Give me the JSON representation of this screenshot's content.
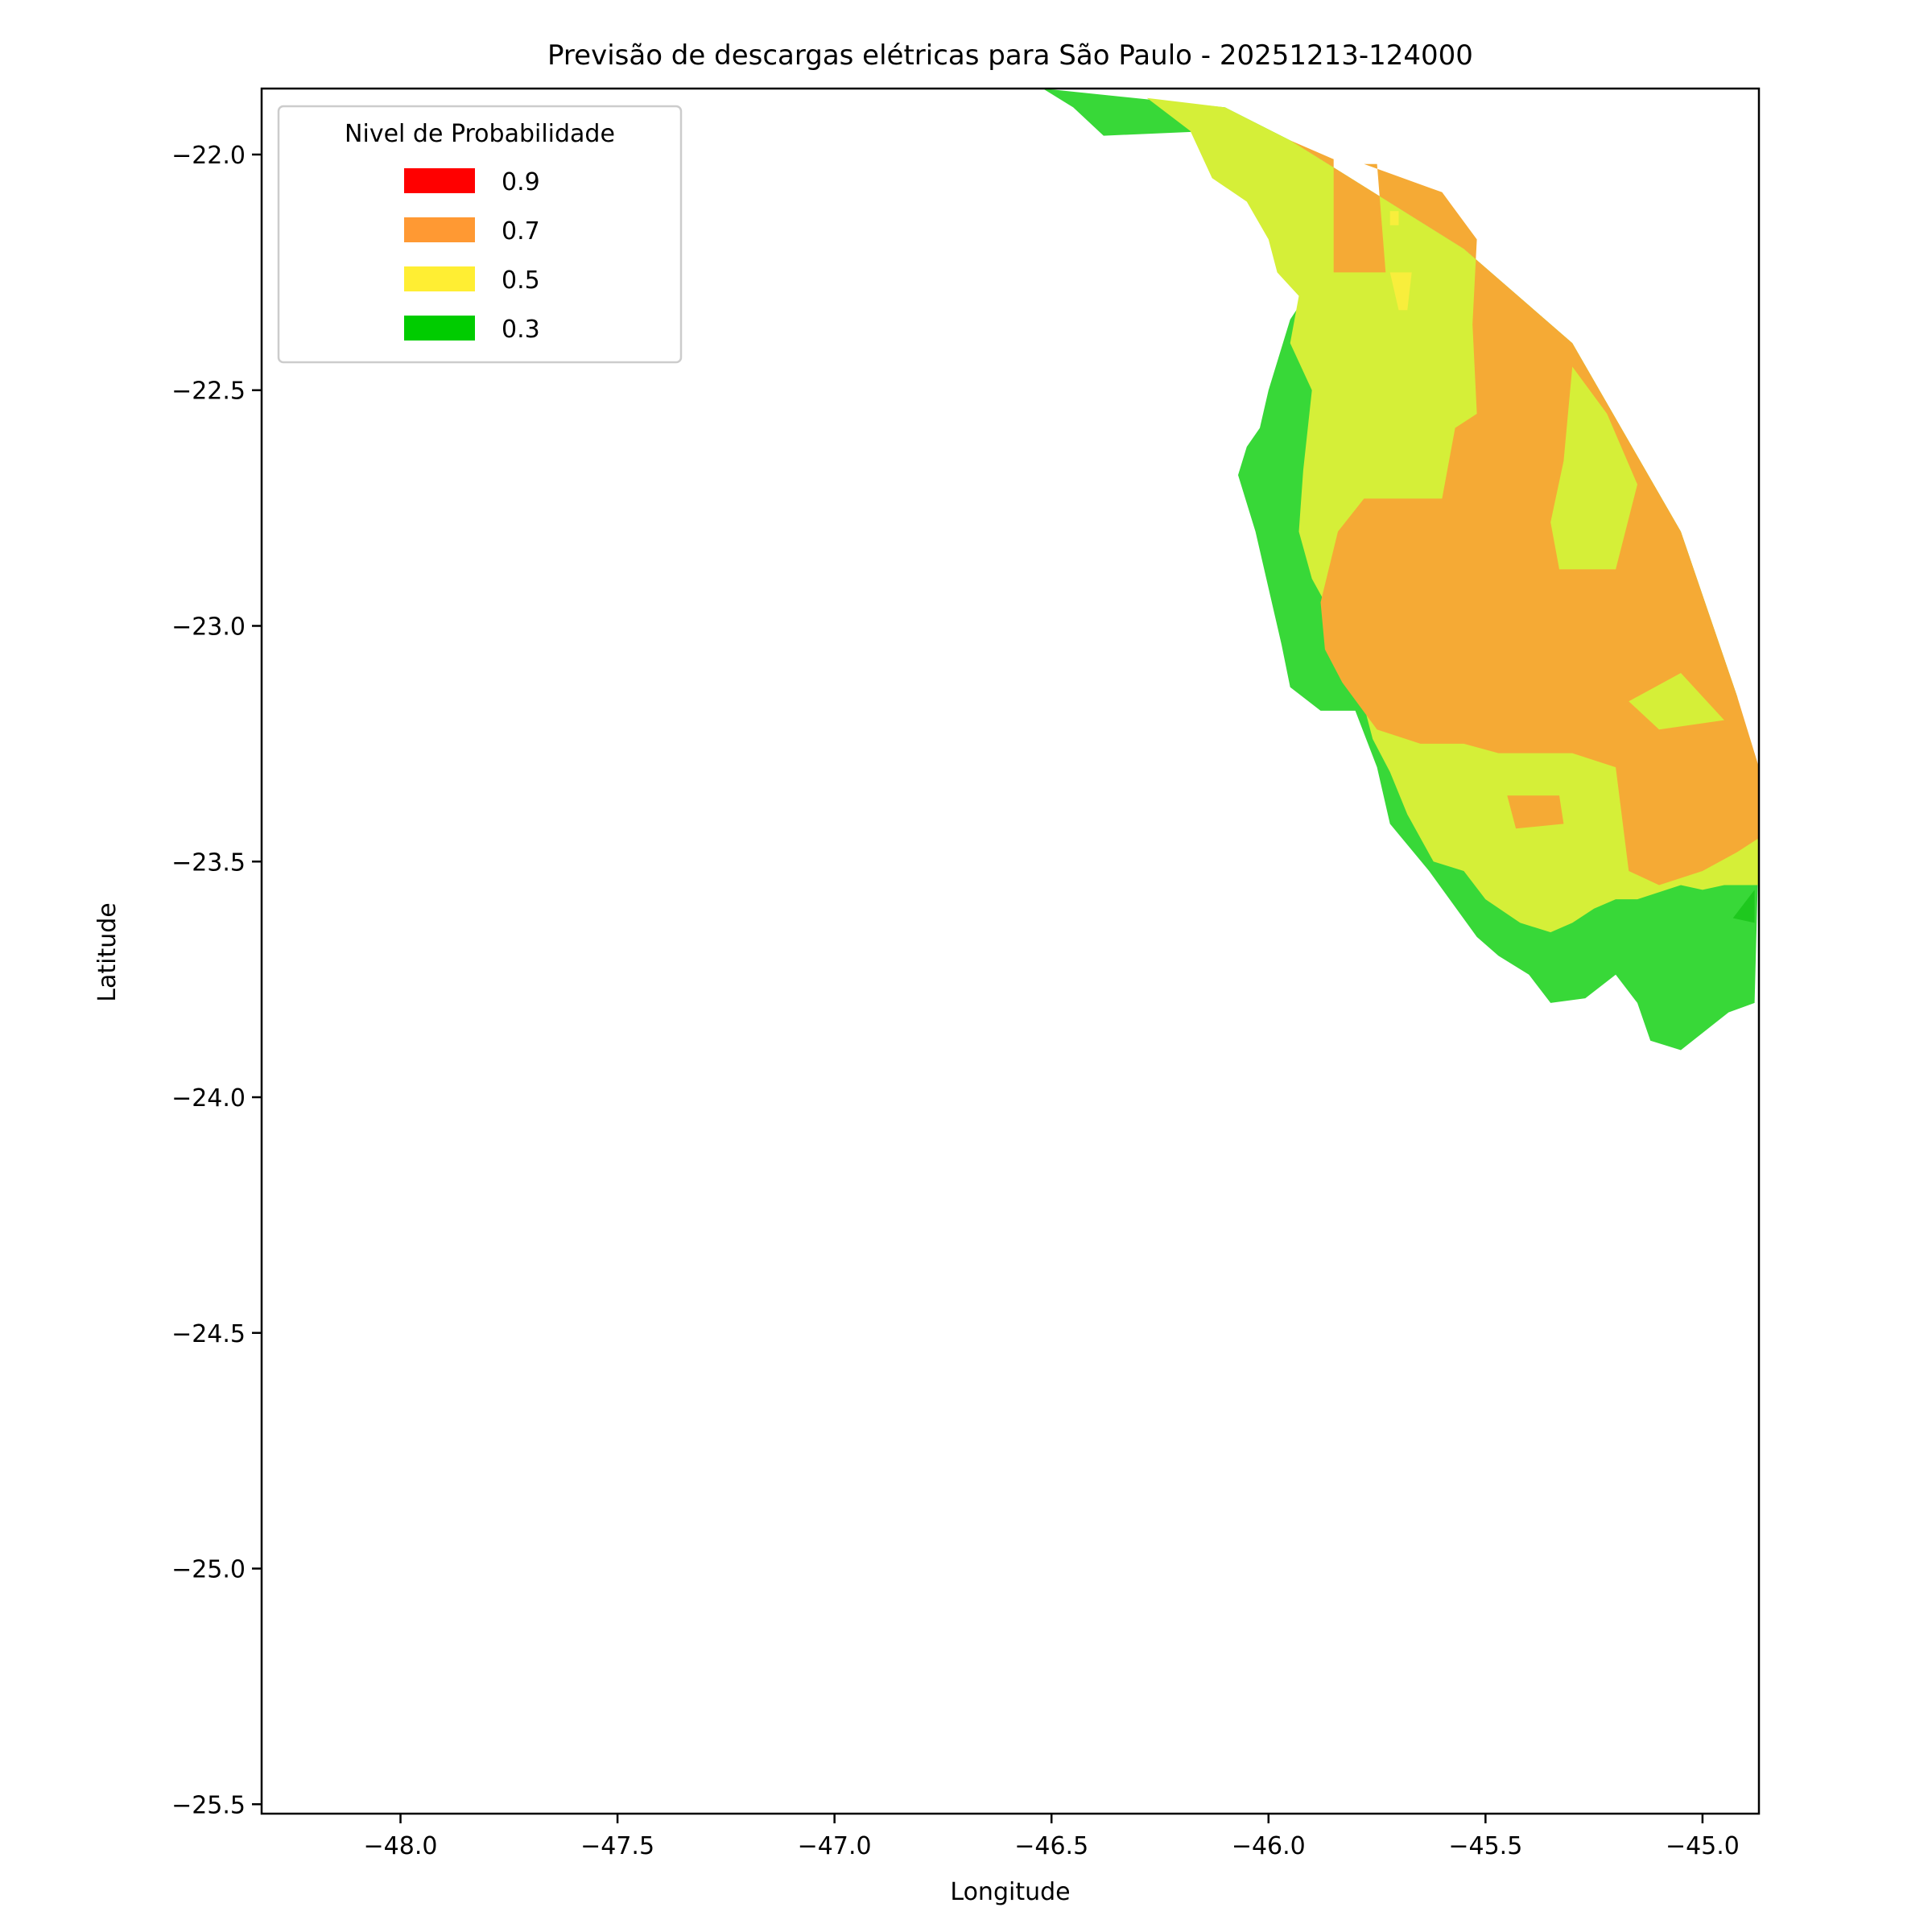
{
  "chart_data": {
    "type": "heatmap",
    "title": "Previsão de descargas elétricas para São Paulo - 20251213-124000",
    "xlabel": "Longitude",
    "ylabel": "Latitude",
    "xlim": [
      -48.32,
      -44.87
    ],
    "ylim": [
      -25.52,
      -21.86
    ],
    "xticks": [
      -48.0,
      -47.5,
      -47.0,
      -46.5,
      -46.0,
      -45.5,
      -45.0
    ],
    "yticks": [
      -22.0,
      -22.5,
      -23.0,
      -23.5,
      -24.0,
      -24.5,
      -25.0,
      -25.5
    ],
    "xtick_labels": [
      "−48.0",
      "−47.5",
      "−47.0",
      "−46.5",
      "−46.0",
      "−45.5",
      "−45.0"
    ],
    "ytick_labels": [
      "−22.0",
      "−22.5",
      "−23.0",
      "−23.5",
      "−24.0",
      "−24.5",
      "−25.0",
      "−25.5"
    ],
    "grid": false,
    "legend": {
      "title": "Nivel de Probabilidade",
      "placement": "upper-left",
      "entries": [
        {
          "label": "0.9",
          "color": "#ff0000"
        },
        {
          "label": "0.7",
          "color": "#ff9933"
        },
        {
          "label": "0.5",
          "color": "#ffee33"
        },
        {
          "label": "0.3",
          "color": "#00cc00"
        }
      ]
    },
    "regions": [
      {
        "level": 0.3,
        "fill": "#38d838",
        "points": [
          [
            -46.52,
            -21.86
          ],
          [
            -46.1,
            -21.9
          ],
          [
            -45.95,
            -21.97
          ],
          [
            -45.55,
            -22.2
          ],
          [
            -45.3,
            -22.4
          ],
          [
            -45.05,
            -22.8
          ],
          [
            -44.92,
            -23.15
          ],
          [
            -44.87,
            -23.45
          ],
          [
            -44.88,
            -23.8
          ],
          [
            -44.94,
            -23.82
          ],
          [
            -45.05,
            -23.9
          ],
          [
            -45.12,
            -23.88
          ],
          [
            -45.15,
            -23.8
          ],
          [
            -45.2,
            -23.74
          ],
          [
            -45.27,
            -23.79
          ],
          [
            -45.35,
            -23.8
          ],
          [
            -45.4,
            -23.74
          ],
          [
            -45.47,
            -23.7
          ],
          [
            -45.52,
            -23.66
          ],
          [
            -45.63,
            -23.52
          ],
          [
            -45.72,
            -23.42
          ],
          [
            -45.75,
            -23.3
          ],
          [
            -45.8,
            -23.18
          ],
          [
            -45.88,
            -23.18
          ],
          [
            -45.95,
            -23.13
          ],
          [
            -45.97,
            -23.04
          ],
          [
            -46.03,
            -22.8
          ],
          [
            -46.07,
            -22.68
          ],
          [
            -46.05,
            -22.62
          ],
          [
            -46.02,
            -22.58
          ],
          [
            -46.0,
            -22.5
          ],
          [
            -45.95,
            -22.35
          ],
          [
            -45.9,
            -22.28
          ],
          [
            -45.88,
            -22.22
          ],
          [
            -45.98,
            -22.17
          ],
          [
            -46.08,
            -22.05
          ],
          [
            -46.13,
            -21.95
          ],
          [
            -46.38,
            -21.96
          ],
          [
            -46.45,
            -21.9
          ]
        ]
      },
      {
        "level": 0.5,
        "fill": "#d5ef38",
        "points": [
          [
            -46.28,
            -21.88
          ],
          [
            -46.1,
            -21.9
          ],
          [
            -45.95,
            -21.97
          ],
          [
            -45.55,
            -22.2
          ],
          [
            -45.3,
            -22.4
          ],
          [
            -45.05,
            -22.8
          ],
          [
            -44.92,
            -23.15
          ],
          [
            -44.87,
            -23.45
          ],
          [
            -44.87,
            -23.55
          ],
          [
            -44.95,
            -23.55
          ],
          [
            -45.0,
            -23.56
          ],
          [
            -45.05,
            -23.55
          ],
          [
            -45.15,
            -23.58
          ],
          [
            -45.2,
            -23.58
          ],
          [
            -45.25,
            -23.6
          ],
          [
            -45.3,
            -23.63
          ],
          [
            -45.35,
            -23.65
          ],
          [
            -45.42,
            -23.63
          ],
          [
            -45.5,
            -23.58
          ],
          [
            -45.55,
            -23.52
          ],
          [
            -45.62,
            -23.5
          ],
          [
            -45.68,
            -23.4
          ],
          [
            -45.72,
            -23.31
          ],
          [
            -45.76,
            -23.24
          ],
          [
            -45.8,
            -23.1
          ],
          [
            -45.84,
            -23.0
          ],
          [
            -45.9,
            -22.9
          ],
          [
            -45.93,
            -22.8
          ],
          [
            -45.92,
            -22.67
          ],
          [
            -45.9,
            -22.5
          ],
          [
            -45.95,
            -22.4
          ],
          [
            -45.93,
            -22.3
          ],
          [
            -45.98,
            -22.25
          ],
          [
            -46.0,
            -22.18
          ],
          [
            -46.05,
            -22.1
          ],
          [
            -46.13,
            -22.05
          ],
          [
            -46.18,
            -21.95
          ]
        ]
      },
      {
        "level": 0.7,
        "fill": "#f5aa35",
        "points": [
          [
            -46.12,
            -21.93
          ],
          [
            -45.95,
            -21.97
          ],
          [
            -45.85,
            -22.01
          ],
          [
            -45.85,
            -22.25
          ],
          [
            -45.73,
            -22.25
          ],
          [
            -45.75,
            -22.02
          ],
          [
            -45.78,
            -22.02
          ],
          [
            -45.6,
            -22.08
          ],
          [
            -45.52,
            -22.18
          ],
          [
            -45.53,
            -22.36
          ],
          [
            -45.52,
            -22.55
          ],
          [
            -45.57,
            -22.58
          ],
          [
            -45.6,
            -22.73
          ],
          [
            -45.78,
            -22.73
          ],
          [
            -45.84,
            -22.8
          ],
          [
            -45.88,
            -22.95
          ],
          [
            -45.87,
            -23.05
          ],
          [
            -45.83,
            -23.12
          ],
          [
            -45.75,
            -23.22
          ],
          [
            -45.65,
            -23.25
          ],
          [
            -45.55,
            -23.25
          ],
          [
            -45.47,
            -23.27
          ],
          [
            -45.3,
            -23.27
          ],
          [
            -45.2,
            -23.3
          ],
          [
            -45.17,
            -23.52
          ],
          [
            -45.1,
            -23.55
          ],
          [
            -45.0,
            -23.52
          ],
          [
            -44.92,
            -23.48
          ],
          [
            -44.87,
            -23.45
          ],
          [
            -44.87,
            -23.3
          ],
          [
            -44.92,
            -23.15
          ],
          [
            -45.05,
            -22.8
          ],
          [
            -45.3,
            -22.4
          ],
          [
            -45.55,
            -22.2
          ],
          [
            -45.95,
            -21.97
          ]
        ]
      },
      {
        "level": 0.5,
        "fill": "#d5ef38",
        "points": [
          [
            -45.3,
            -22.45
          ],
          [
            -45.22,
            -22.55
          ],
          [
            -45.15,
            -22.7
          ],
          [
            -45.2,
            -22.88
          ],
          [
            -45.33,
            -22.88
          ],
          [
            -45.35,
            -22.78
          ],
          [
            -45.32,
            -22.65
          ]
        ]
      },
      {
        "level": 0.5,
        "fill": "#d5ef38",
        "points": [
          [
            -45.05,
            -23.1
          ],
          [
            -44.95,
            -23.2
          ],
          [
            -45.1,
            -23.22
          ],
          [
            -45.17,
            -23.16
          ]
        ]
      },
      {
        "level": 0.7,
        "fill": "#f5aa35",
        "points": [
          [
            -45.45,
            -23.36
          ],
          [
            -45.33,
            -23.36
          ],
          [
            -45.32,
            -23.42
          ],
          [
            -45.43,
            -23.43
          ]
        ]
      },
      {
        "level": 0.5,
        "fill": "#f8ee3c",
        "points": [
          [
            -45.72,
            -22.25
          ],
          [
            -45.67,
            -22.25
          ],
          [
            -45.68,
            -22.33
          ],
          [
            -45.7,
            -22.33
          ]
        ]
      },
      {
        "level": 0.5,
        "fill": "#f8ee3c",
        "points": [
          [
            -45.72,
            -22.12
          ],
          [
            -45.7,
            -22.12
          ],
          [
            -45.7,
            -22.15
          ],
          [
            -45.72,
            -22.15
          ]
        ]
      },
      {
        "level": 0.3,
        "fill": "#1ec81e",
        "points": [
          [
            -44.88,
            -23.56
          ],
          [
            -44.93,
            -23.62
          ],
          [
            -44.88,
            -23.63
          ]
        ]
      }
    ]
  }
}
